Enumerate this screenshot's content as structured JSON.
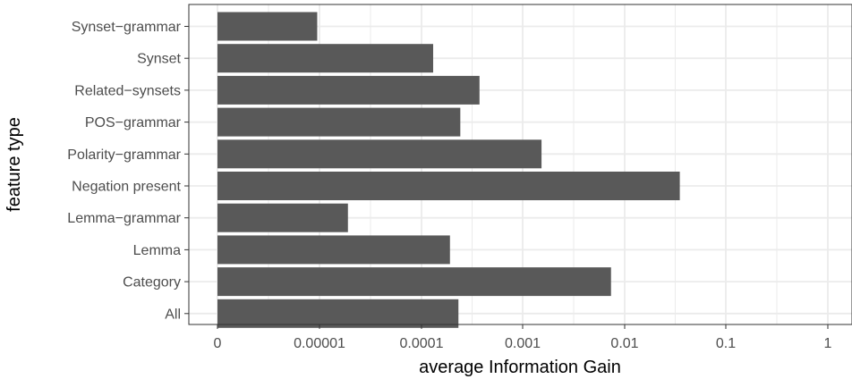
{
  "chart_data": {
    "type": "bar",
    "orientation": "horizontal",
    "xlabel": "average Information Gain",
    "ylabel": "feature type",
    "x_scale": "log",
    "x_ticks": [
      "0",
      "0.00001",
      "0.0001",
      "0.001",
      "0.01",
      "0.1",
      "1"
    ],
    "categories": [
      "Synset−grammar",
      "Synset",
      "Related−synsets",
      "POS−grammar",
      "Polarity−grammar",
      "Negation present",
      "Lemma−grammar",
      "Lemma",
      "Category",
      "All"
    ],
    "values": [
      9.5e-06,
      0.00013,
      0.00037,
      0.00024,
      0.0015,
      0.034,
      1.9e-05,
      0.00019,
      0.0072,
      0.00023
    ],
    "grid": true,
    "bar_color": "#595959",
    "grid_color": "#ebebeb",
    "frame_color": "#333333"
  }
}
